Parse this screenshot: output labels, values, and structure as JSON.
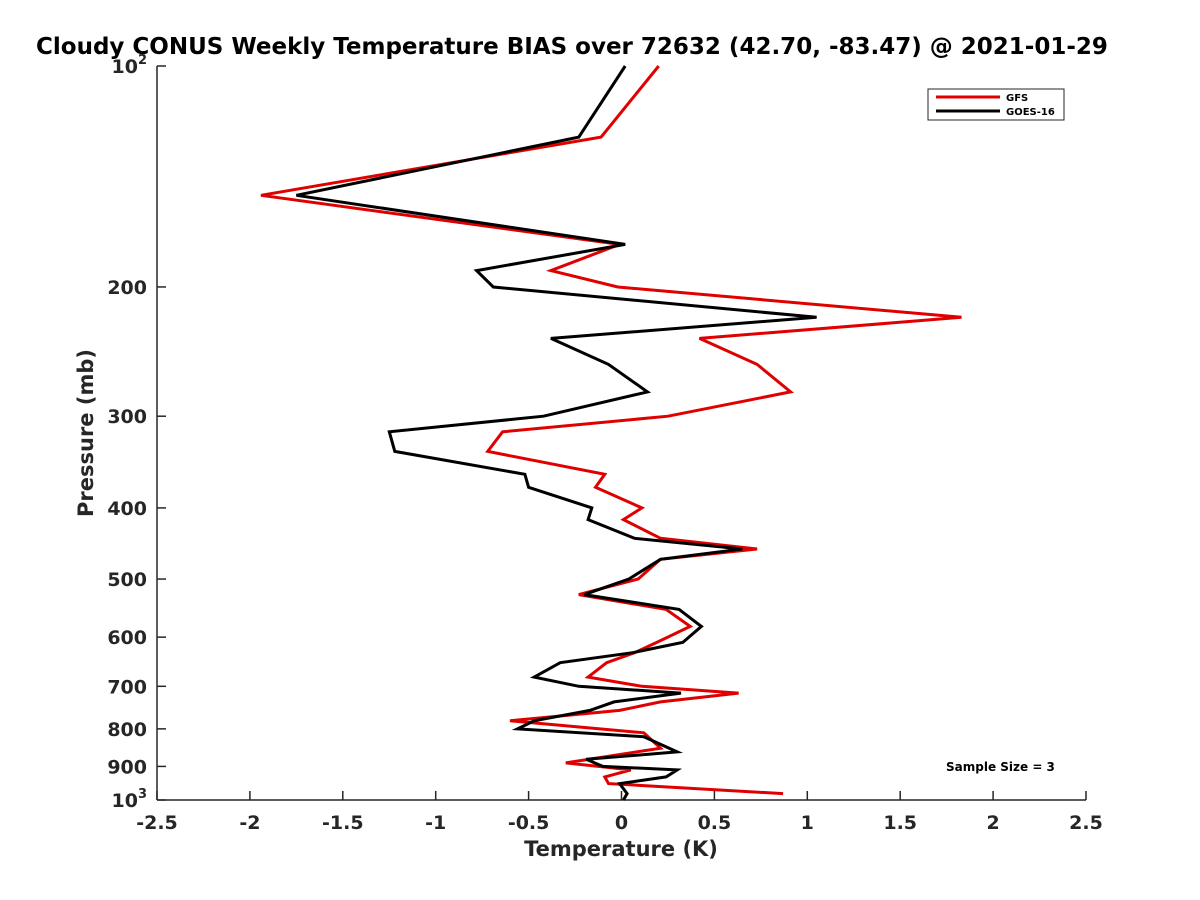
{
  "chart_data": {
    "type": "line",
    "title": "Cloudy CONUS Weekly Temperature BIAS over 72632 (42.70, -83.47) @ 2021-01-29",
    "xlabel": "Temperature (K)",
    "ylabel": "Pressure (mb)",
    "xlim": [
      -2.5,
      2.5
    ],
    "ylim": [
      1000,
      100
    ],
    "yscale": "log",
    "x_ticks": [
      "-2.5",
      "-2",
      "-1.5",
      "-1",
      "-0.5",
      "0",
      "0.5",
      "1",
      "1.5",
      "2",
      "2.5"
    ],
    "y_ticks": [
      {
        "value": 100,
        "base": "10",
        "exp": "2"
      },
      {
        "value": 200,
        "base": "200",
        "exp": ""
      },
      {
        "value": 300,
        "base": "300",
        "exp": ""
      },
      {
        "value": 400,
        "base": "400",
        "exp": ""
      },
      {
        "value": 500,
        "base": "500",
        "exp": ""
      },
      {
        "value": 600,
        "base": "600",
        "exp": ""
      },
      {
        "value": 700,
        "base": "700",
        "exp": ""
      },
      {
        "value": 800,
        "base": "800",
        "exp": ""
      },
      {
        "value": 900,
        "base": "900",
        "exp": ""
      },
      {
        "value": 1000,
        "base": "10",
        "exp": "3"
      }
    ],
    "grid": false,
    "legend_position": "top-right",
    "annotation": "Sample Size = 3",
    "series": [
      {
        "name": "GFS",
        "color": "#e00000",
        "points": [
          [
            0.2,
            100
          ],
          [
            -0.11,
            125
          ],
          [
            -1.94,
            150
          ],
          [
            -0.01,
            175
          ],
          [
            -0.38,
            190
          ],
          [
            -0.02,
            200
          ],
          [
            1.83,
            220
          ],
          [
            0.42,
            235
          ],
          [
            0.73,
            255
          ],
          [
            0.91,
            278
          ],
          [
            0.25,
            300
          ],
          [
            -0.64,
            315
          ],
          [
            -0.72,
            335
          ],
          [
            -0.09,
            360
          ],
          [
            -0.14,
            375
          ],
          [
            0.11,
            400
          ],
          [
            0.01,
            415
          ],
          [
            0.21,
            440
          ],
          [
            0.73,
            455
          ],
          [
            0.21,
            470
          ],
          [
            0.09,
            500
          ],
          [
            -0.23,
            525
          ],
          [
            0.24,
            550
          ],
          [
            0.37,
            580
          ],
          [
            0.19,
            610
          ],
          [
            0.07,
            630
          ],
          [
            -0.08,
            650
          ],
          [
            -0.18,
            680
          ],
          [
            0.11,
            700
          ],
          [
            0.63,
            715
          ],
          [
            0.21,
            735
          ],
          [
            -0.01,
            755
          ],
          [
            -0.6,
            780
          ],
          [
            0.12,
            810
          ],
          [
            0.21,
            850
          ],
          [
            -0.3,
            890
          ],
          [
            0.05,
            910
          ],
          [
            -0.09,
            930
          ],
          [
            -0.07,
            950
          ],
          [
            0.87,
            980
          ]
        ]
      },
      {
        "name": "GOES-16",
        "color": "#000000",
        "points": [
          [
            0.02,
            100
          ],
          [
            -0.23,
            125
          ],
          [
            -1.75,
            150
          ],
          [
            0.02,
            175
          ],
          [
            -0.78,
            190
          ],
          [
            -0.69,
            200
          ],
          [
            1.05,
            220
          ],
          [
            -0.38,
            235
          ],
          [
            -0.07,
            255
          ],
          [
            0.14,
            278
          ],
          [
            -0.42,
            300
          ],
          [
            -1.25,
            315
          ],
          [
            -1.22,
            335
          ],
          [
            -0.52,
            360
          ],
          [
            -0.5,
            375
          ],
          [
            -0.16,
            400
          ],
          [
            -0.18,
            415
          ],
          [
            0.07,
            440
          ],
          [
            0.65,
            455
          ],
          [
            0.21,
            470
          ],
          [
            0.04,
            500
          ],
          [
            -0.2,
            525
          ],
          [
            0.31,
            550
          ],
          [
            0.43,
            580
          ],
          [
            0.33,
            610
          ],
          [
            0.06,
            630
          ],
          [
            -0.33,
            650
          ],
          [
            -0.47,
            680
          ],
          [
            -0.23,
            700
          ],
          [
            0.32,
            715
          ],
          [
            -0.04,
            735
          ],
          [
            -0.17,
            755
          ],
          [
            -0.47,
            780
          ],
          [
            -0.56,
            800
          ],
          [
            0.12,
            820
          ],
          [
            0.3,
            860
          ],
          [
            -0.19,
            880
          ],
          [
            -0.1,
            900
          ],
          [
            0.3,
            910
          ],
          [
            0.24,
            930
          ],
          [
            -0.01,
            950
          ],
          [
            0.03,
            980
          ],
          [
            0.01,
            1000
          ]
        ]
      }
    ]
  }
}
